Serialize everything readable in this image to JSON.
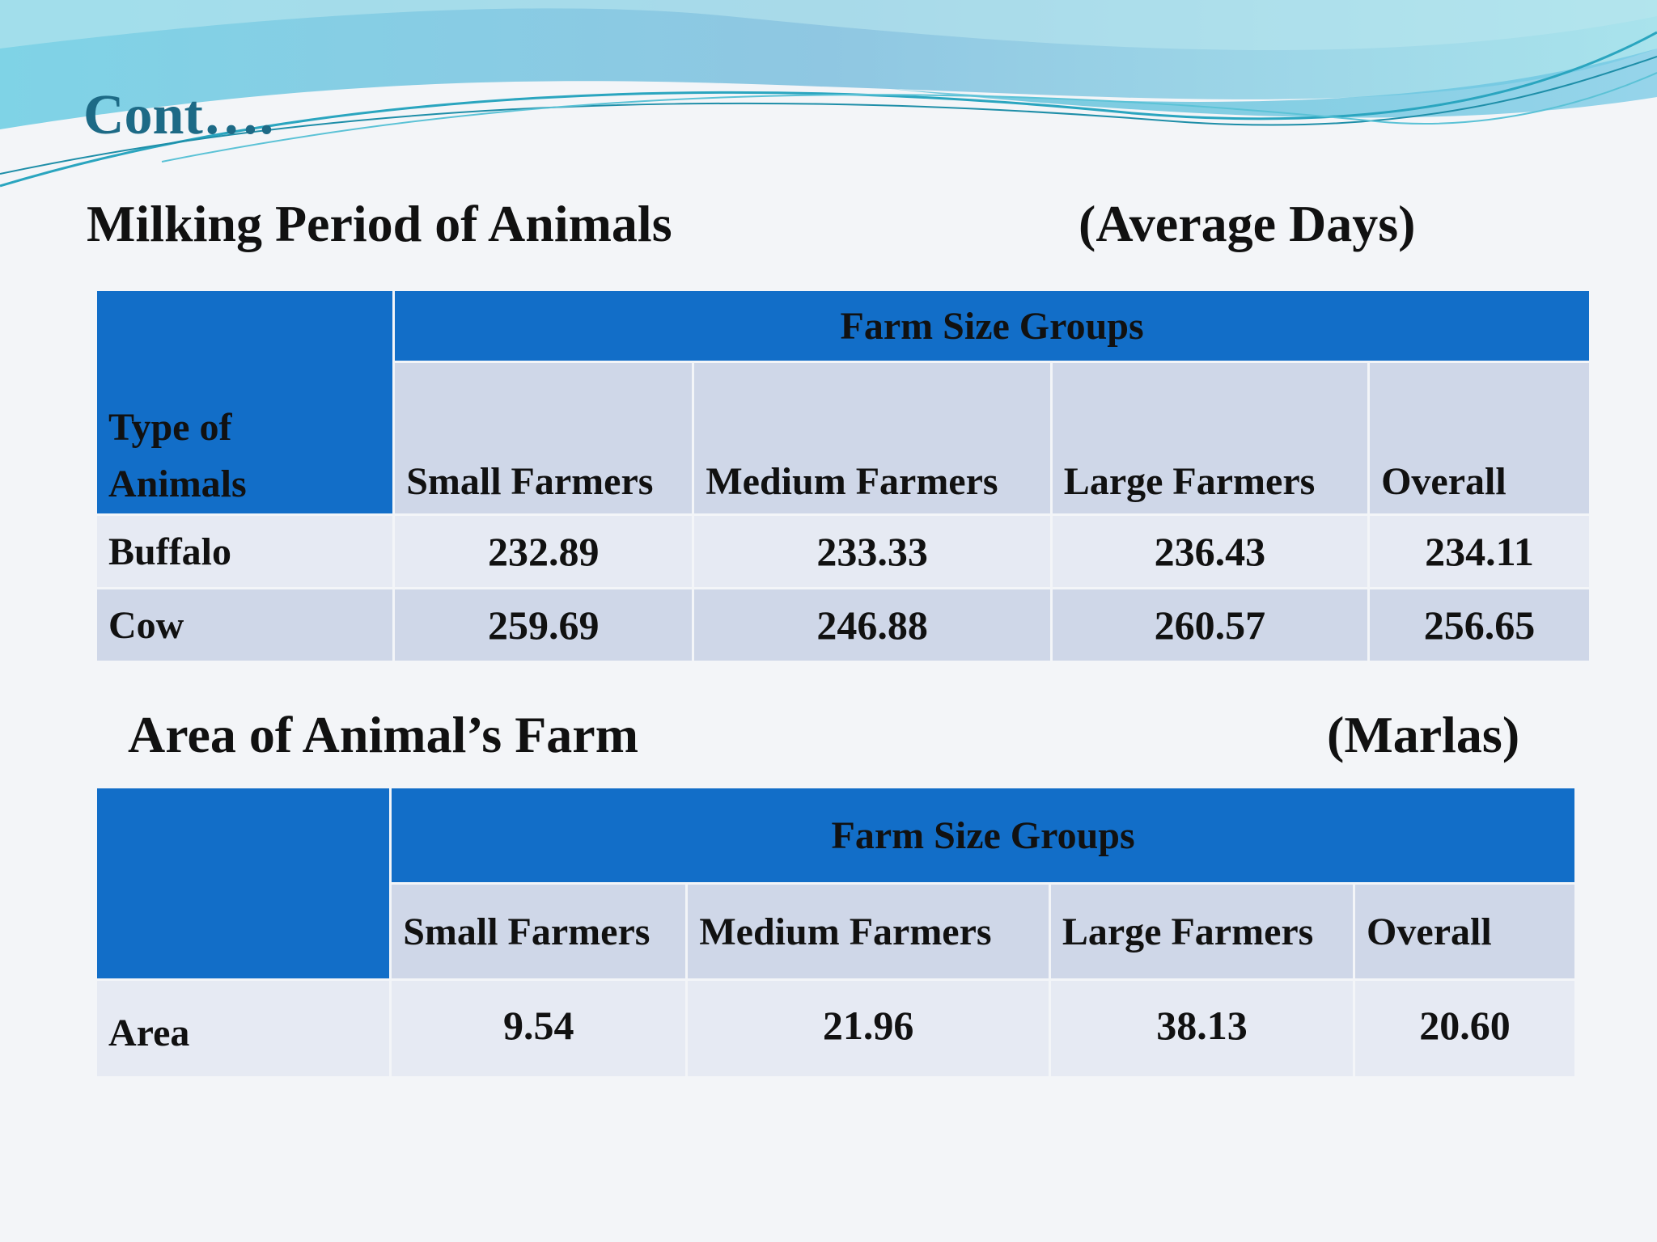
{
  "slide_title": "Cont….",
  "milking": {
    "heading": "Milking Period of Animals",
    "unit": "(Average Days)",
    "row_header": [
      "Type of",
      "Animals"
    ],
    "group_header": "Farm Size Groups",
    "columns": [
      "Small Farmers",
      "Medium Farmers",
      "Large Farmers",
      "Overall"
    ],
    "rows": [
      {
        "label": "Buffalo",
        "values": [
          "232.89",
          "233.33",
          "236.43",
          "234.11"
        ]
      },
      {
        "label": "Cow",
        "values": [
          "259.69",
          "246.88",
          "260.57",
          "256.65"
        ]
      }
    ]
  },
  "area": {
    "heading": "Area of Animal’s Farm",
    "unit": "(Marlas)",
    "group_header": "Farm Size Groups",
    "columns": [
      "Small Farmers",
      "Medium Farmers",
      "Large Farmers",
      "Overall"
    ],
    "rows": [
      {
        "label": "Area",
        "values": [
          "9.54",
          "21.96",
          "38.13",
          "20.60"
        ]
      }
    ]
  },
  "colors": {
    "header_blue": "#126ec8",
    "title_teal": "#1d6a86",
    "row_light": "#e6eaf3",
    "row_dark": "#cfd7e8"
  }
}
